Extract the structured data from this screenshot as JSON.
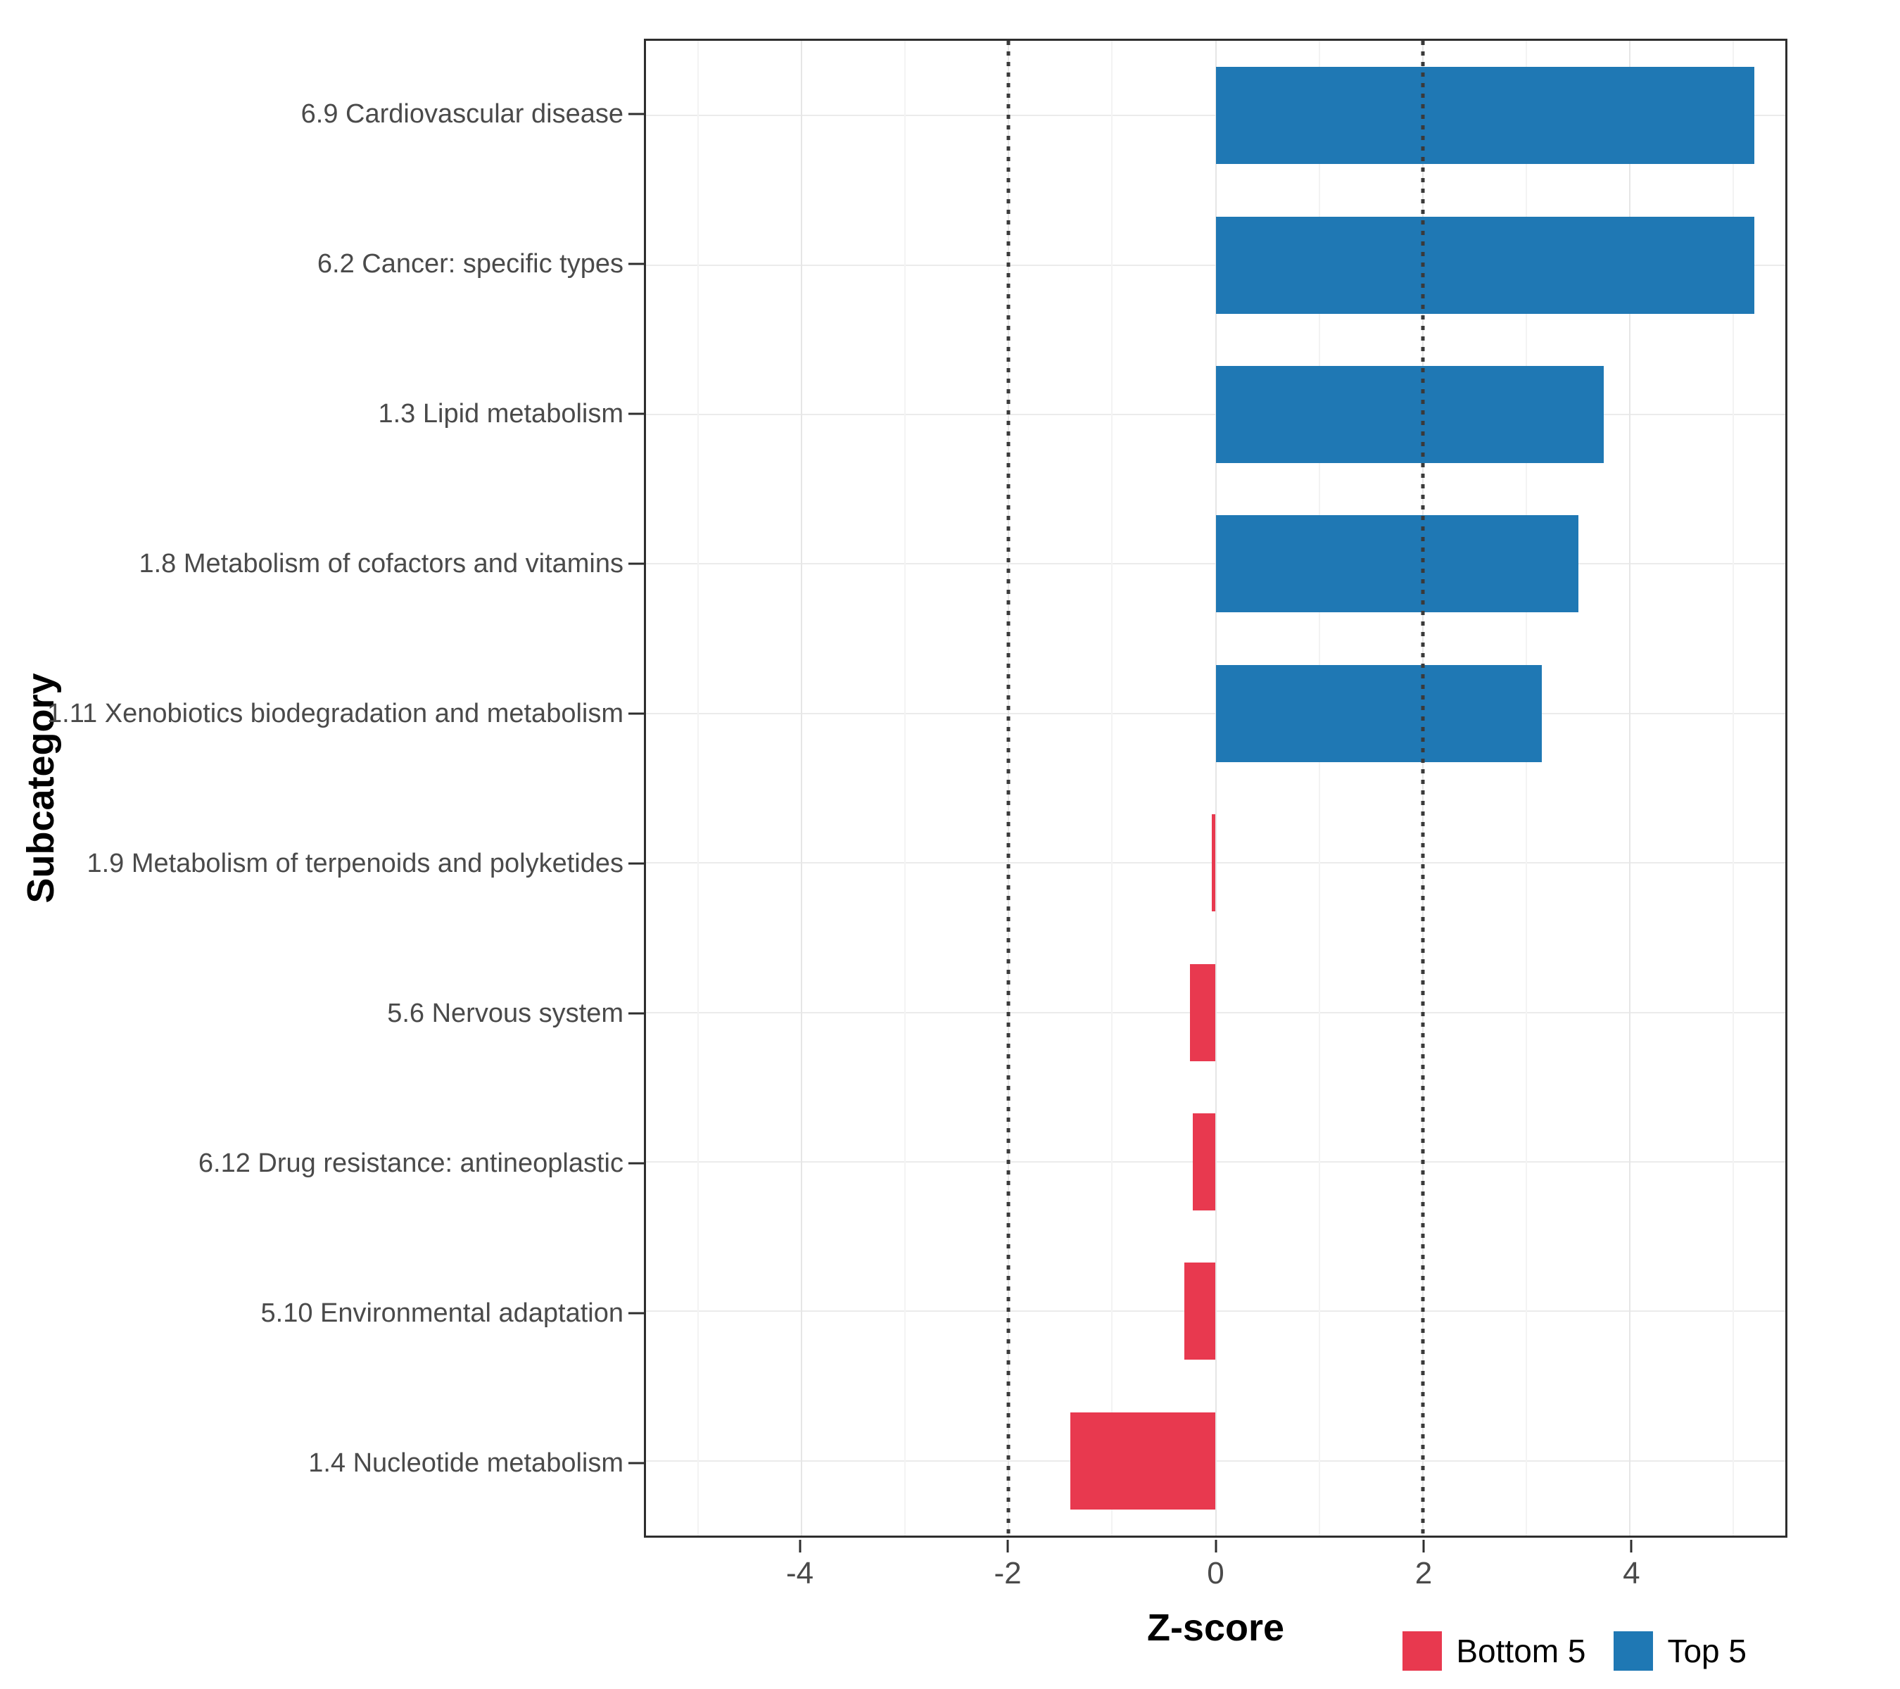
{
  "chart_data": {
    "type": "bar",
    "orientation": "horizontal",
    "title": "",
    "xlabel": "Z-score",
    "ylabel": "Subcategory",
    "xlim": [
      -5.5,
      5.5
    ],
    "x_ticks": [
      -4,
      -2,
      0,
      2,
      4
    ],
    "x_minor_ticks": [
      -5,
      -3,
      -1,
      1,
      3,
      5
    ],
    "reference_lines": [
      -2,
      2
    ],
    "grid": true,
    "legend_position": "bottom-right",
    "categories": [
      "6.9 Cardiovascular disease",
      "6.2 Cancer: specific types",
      "1.3 Lipid metabolism",
      "1.8 Metabolism of cofactors and vitamins",
      "1.11 Xenobiotics biodegradation and metabolism",
      "1.9 Metabolism of terpenoids and polyketides",
      "5.6 Nervous system",
      "6.12 Drug resistance: antineoplastic",
      "5.10 Environmental adaptation",
      "1.4 Nucleotide metabolism"
    ],
    "values": [
      5.2,
      5.2,
      3.75,
      3.5,
      3.15,
      -0.04,
      -0.25,
      -0.22,
      -0.3,
      -1.4
    ],
    "groups": [
      "Top 5",
      "Top 5",
      "Top 5",
      "Top 5",
      "Top 5",
      "Bottom 5",
      "Bottom 5",
      "Bottom 5",
      "Bottom 5",
      "Bottom 5"
    ],
    "colors": {
      "Top 5": "#1F78B4",
      "Bottom 5": "#E8394F"
    },
    "legend": {
      "items": [
        {
          "label": "Bottom 5",
          "color": "#E8394F"
        },
        {
          "label": "Top 5",
          "color": "#1F78B4"
        }
      ]
    }
  }
}
